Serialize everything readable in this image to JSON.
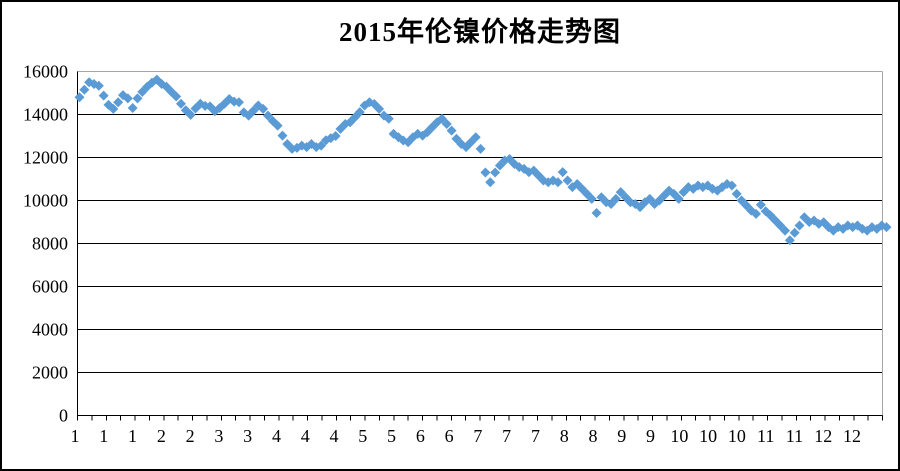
{
  "chart_data": {
    "type": "scatter",
    "title": "2015年伦镍价格走势图",
    "xlabel": "",
    "ylabel": "",
    "ylim": [
      0,
      16000
    ],
    "ytick_interval": 2000,
    "ytick_labels": [
      "0",
      "2000",
      "4000",
      "6000",
      "8000",
      "10000",
      "12000",
      "14000",
      "16000"
    ],
    "x_labels": [
      "1",
      "1",
      "1",
      "2",
      "2",
      "3",
      "3",
      "4",
      "4",
      "4",
      "5",
      "5",
      "6",
      "6",
      "7",
      "7",
      "7",
      "8",
      "8",
      "9",
      "9",
      "10",
      "10",
      "10",
      "11",
      "11",
      "12",
      "12"
    ],
    "x_minor_tick_count": 57,
    "grid": "horizontal",
    "legend_position": "none",
    "marker": "diamond",
    "marker_color": "#5B9BD5",
    "gridline_color": "#000000",
    "plot_border_color": "#A6A6A6",
    "axis_color": "#000000",
    "series": [
      {
        "values": [
          14800,
          15150,
          15500,
          15420,
          15340,
          14880,
          14450,
          14260,
          14570,
          14900,
          14750,
          14300,
          14750,
          15050,
          15290,
          15480,
          15620,
          15420,
          15290,
          15060,
          14840,
          14500,
          14200,
          13980,
          14280,
          14500,
          14400,
          14380,
          14150,
          14300,
          14500,
          14720,
          14600,
          14570,
          14100,
          13950,
          14180,
          14420,
          14260,
          13950,
          13700,
          13480,
          13020,
          12630,
          12400,
          12450,
          12550,
          12480,
          12630,
          12480,
          12550,
          12800,
          12900,
          13000,
          13330,
          13560,
          13640,
          13870,
          14110,
          14420,
          14570,
          14490,
          14260,
          13950,
          13800,
          13100,
          12940,
          12790,
          12710,
          12940,
          13100,
          13020,
          13180,
          13410,
          13640,
          13800,
          13560,
          13250,
          12870,
          12630,
          12480,
          12710,
          12940,
          12400,
          11300,
          10850,
          11300,
          11630,
          11860,
          11930,
          11700,
          11550,
          11470,
          11320,
          11390,
          11160,
          10930,
          10850,
          10930,
          10850,
          11320,
          10930,
          10620,
          10770,
          10540,
          10310,
          10075,
          9420,
          10150,
          9920,
          9840,
          10075,
          10390,
          10150,
          9920,
          9840,
          9690,
          9920,
          10075,
          9840,
          10000,
          10230,
          10460,
          10310,
          10075,
          10390,
          10620,
          10540,
          10700,
          10620,
          10700,
          10540,
          10460,
          10620,
          10770,
          10700,
          10310,
          10000,
          9770,
          9530,
          9380,
          9800,
          9500,
          9300,
          9070,
          8840,
          8600,
          8150,
          8500,
          8840,
          9220,
          9000,
          9070,
          8910,
          8990,
          8760,
          8600,
          8760,
          8680,
          8840,
          8760,
          8840,
          8680,
          8600,
          8760,
          8680,
          8840,
          8760
        ]
      }
    ]
  }
}
